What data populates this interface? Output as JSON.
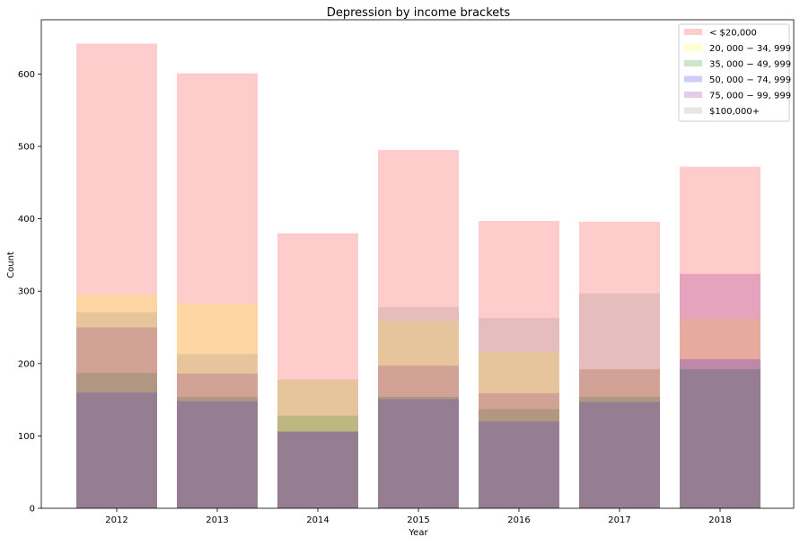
{
  "chart_data": {
    "type": "bar",
    "title": "Depression by income brackets",
    "xlabel": "Year",
    "ylabel": "Count",
    "categories": [
      "2012",
      "2013",
      "2014",
      "2015",
      "2016",
      "2017",
      "2018"
    ],
    "ylim": [
      0,
      675
    ],
    "yticks": [
      0,
      100,
      200,
      300,
      400,
      500,
      600
    ],
    "legend_position": "top-right",
    "overlapping_translucent_bars": true,
    "bar_alpha": 0.2,
    "series": [
      {
        "name": "< $20,000",
        "color": "#ff0000",
        "values": [
          642,
          601,
          380,
          495,
          397,
          396,
          472
        ]
      },
      {
        "name": "$20,000-$34,999",
        "legend_label": "20, 000 − 34, 999",
        "color": "#ffff00",
        "values": [
          295,
          283,
          178,
          259,
          216,
          192,
          262
        ]
      },
      {
        "name": "$35,000-$49,999",
        "legend_label": "35, 000 − 49, 999",
        "color": "#008000",
        "values": [
          187,
          154,
          128,
          154,
          137,
          154,
          192
        ]
      },
      {
        "name": "$50,000-$74,999",
        "legend_label": "50, 000 − 74, 999",
        "color": "#0000ff",
        "values": [
          160,
          148,
          106,
          151,
          120,
          147,
          206
        ]
      },
      {
        "name": "$75,000-$99,999",
        "legend_label": "75, 000 − 99, 999",
        "color": "#800080",
        "values": [
          250,
          186,
          106,
          197,
          159,
          192,
          324
        ]
      },
      {
        "name": "$100,000+",
        "color": "#808080",
        "values": [
          271,
          213,
          178,
          278,
          263,
          297,
          192
        ]
      }
    ]
  }
}
